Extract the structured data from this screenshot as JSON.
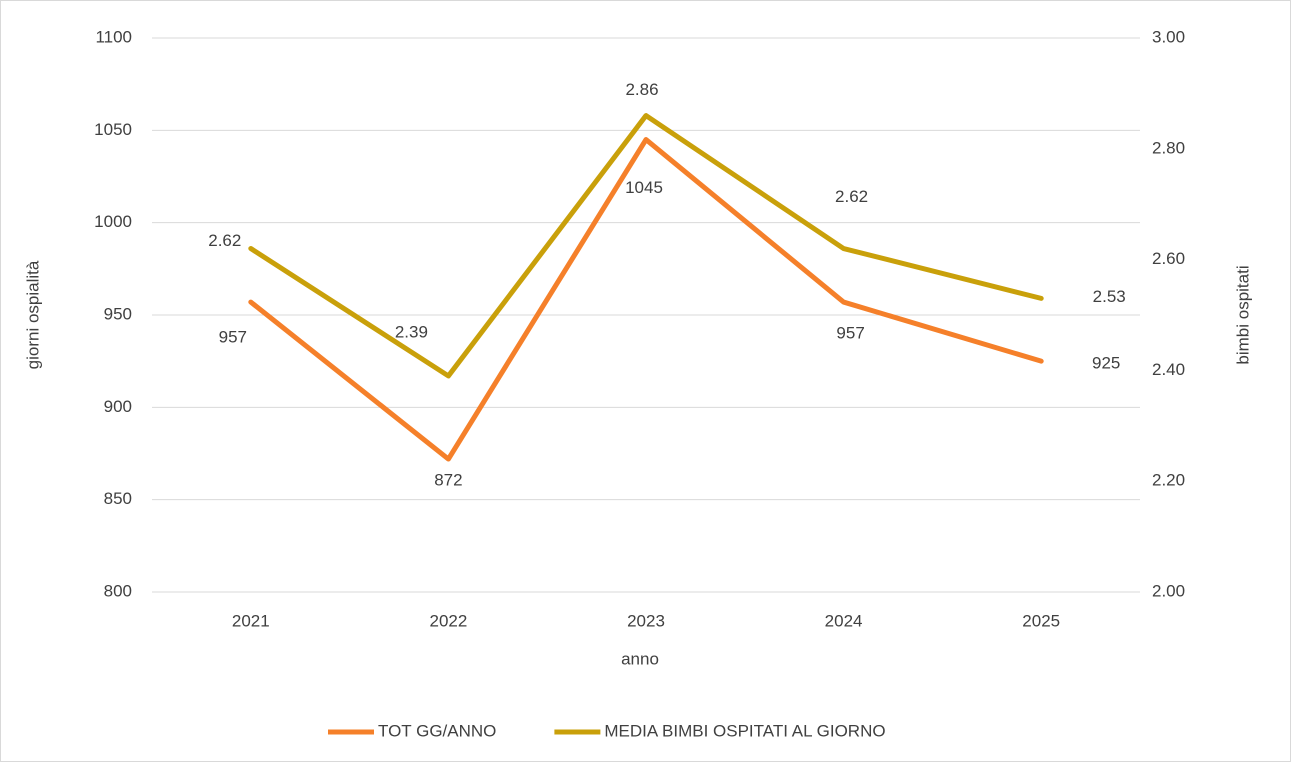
{
  "chart_data": {
    "type": "line",
    "categories": [
      "2021",
      "2022",
      "2023",
      "2024",
      "2025"
    ],
    "series": [
      {
        "name": "TOT GG/ANNO",
        "color": "#f5802a",
        "values": [
          957,
          872,
          1045,
          957,
          925
        ]
      },
      {
        "name": "MEDIA BIMBI OSPITATI AL GIORNO",
        "color": "#c9a00a",
        "values": [
          2.62,
          2.39,
          2.86,
          2.62,
          2.53
        ],
        "axis": "y2"
      }
    ],
    "xlabel": "anno",
    "ylabel": "giorni ospialità",
    "y2label": "bimbi ospitati",
    "ylim": [
      800,
      1100
    ],
    "yticks": [
      800,
      850,
      900,
      950,
      1000,
      1050,
      1100
    ],
    "y2lim": [
      2,
      3
    ],
    "y2ticks": [
      {
        "value": 2,
        "label": "2.00"
      },
      {
        "value": 2.2,
        "label": "2.20"
      },
      {
        "value": 2.4,
        "label": "2.40"
      },
      {
        "value": 2.6,
        "label": "2.60"
      },
      {
        "value": 2.8,
        "label": "2.80"
      },
      {
        "value": 3,
        "label": "3.00"
      }
    ],
    "grid": true,
    "legend": "bottom"
  }
}
